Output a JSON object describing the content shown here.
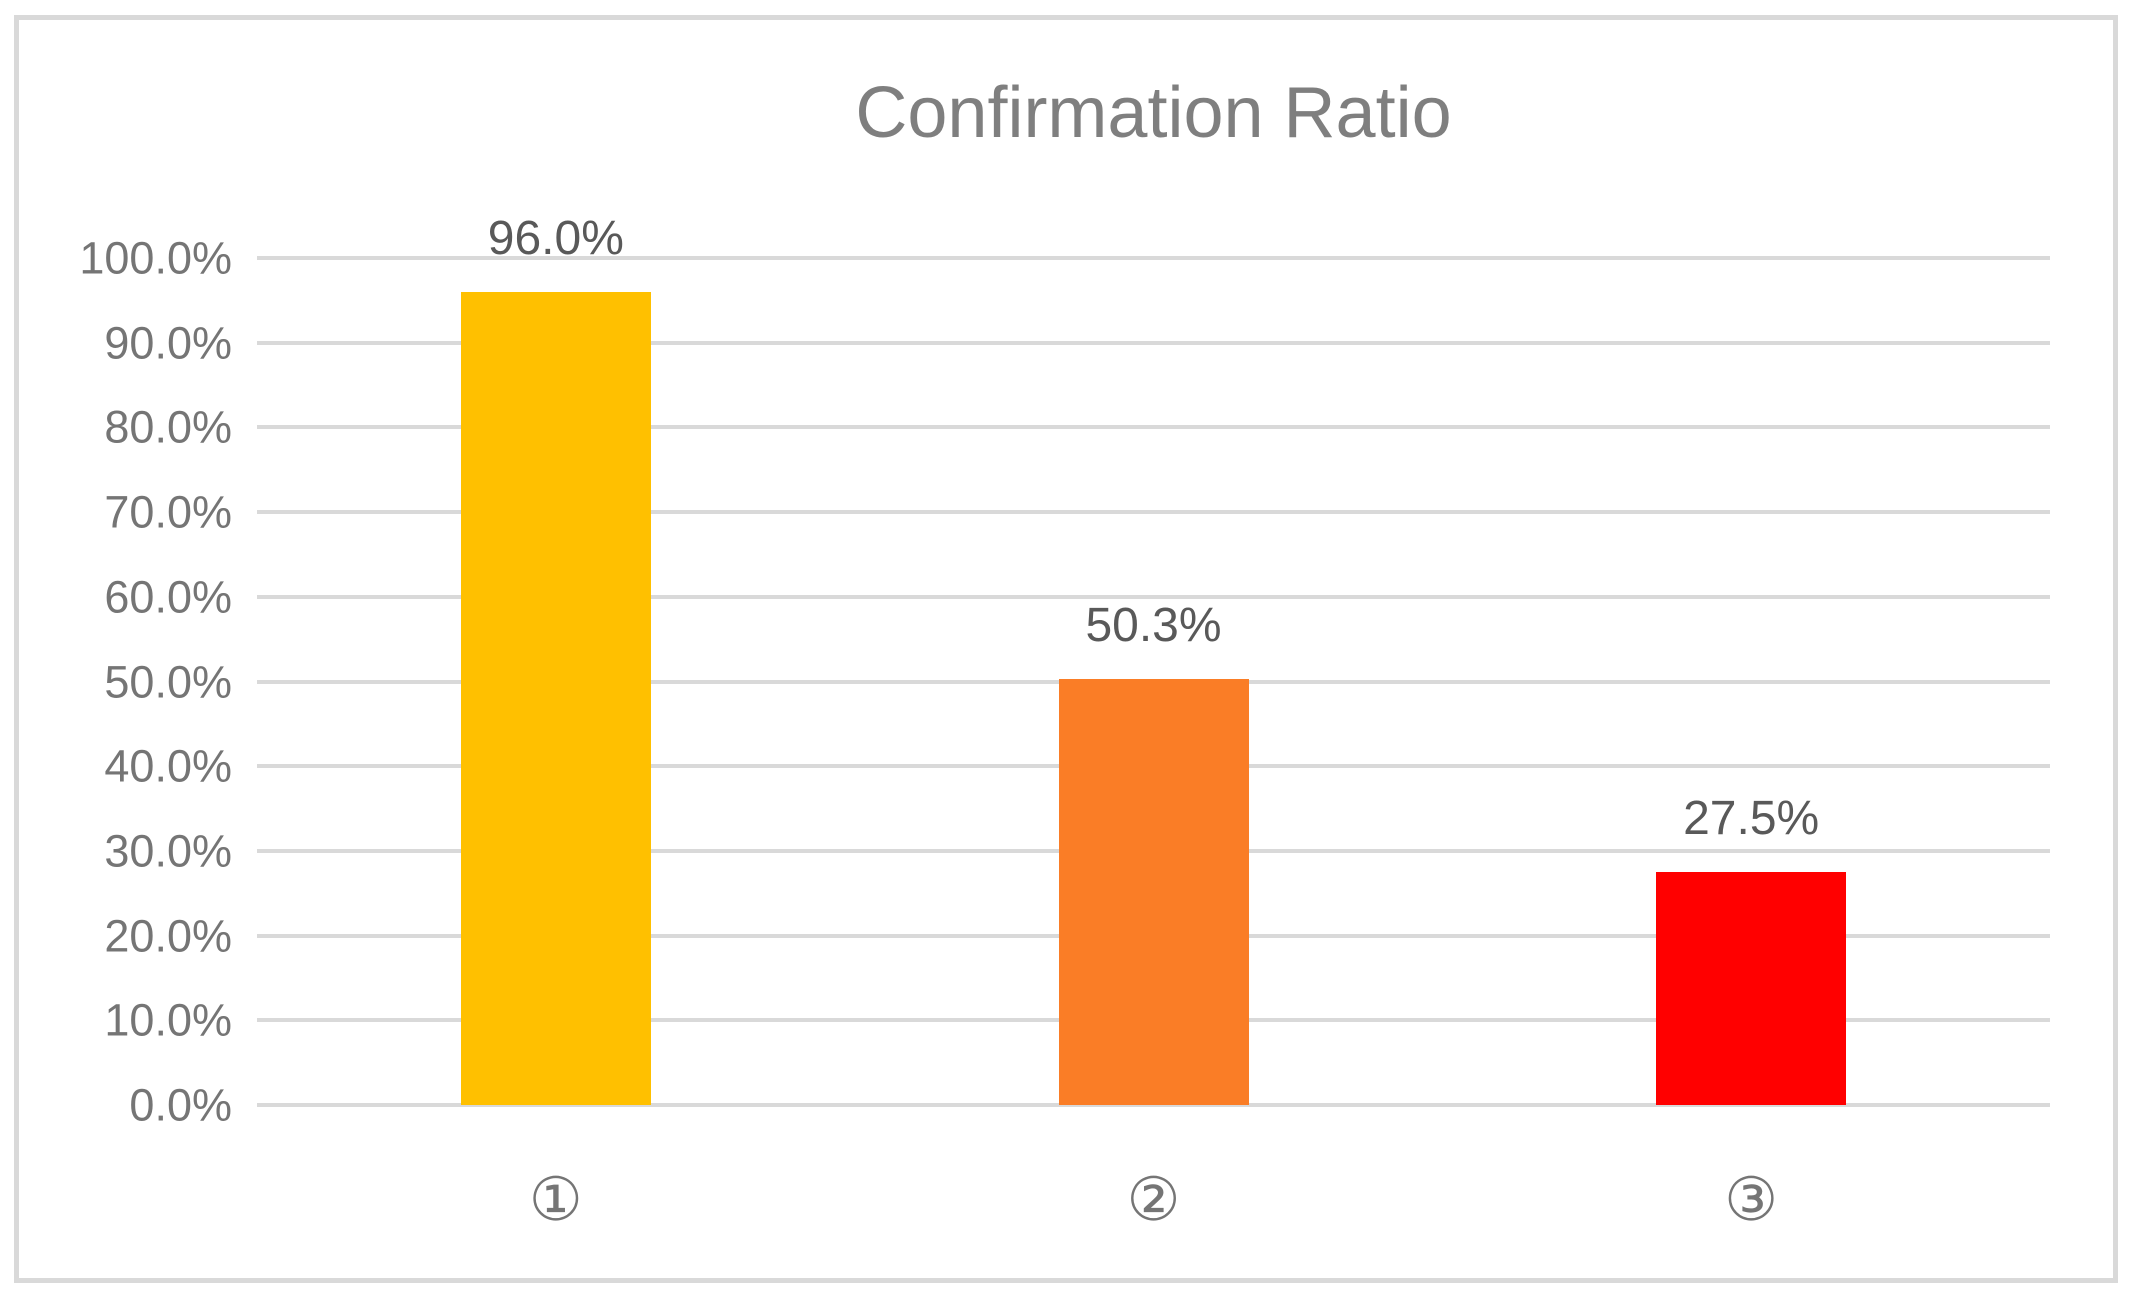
{
  "colors": {
    "frame_border": "#D9D9D9",
    "gridline": "#D9D9D9",
    "title_text": "#7F7F7F",
    "tick_text": "#757575",
    "data_label_text": "#595959",
    "category_text": "#757575",
    "background": "#FFFFFF"
  },
  "chart_data": {
    "type": "bar",
    "title": "Confirmation Ratio",
    "categories": [
      "①",
      "②",
      "③"
    ],
    "values": [
      96.0,
      50.3,
      27.5
    ],
    "data_labels": [
      "96.0%",
      "50.3%",
      "27.5%"
    ],
    "bar_colors": [
      "#FFC000",
      "#FA7D26",
      "#FF0000"
    ],
    "ylim": [
      0,
      100
    ],
    "y_tick_step": 10,
    "y_tick_labels": [
      "0.0%",
      "10.0%",
      "20.0%",
      "30.0%",
      "40.0%",
      "50.0%",
      "60.0%",
      "70.0%",
      "80.0%",
      "90.0%",
      "100.0%"
    ],
    "grid": true,
    "legend": "none",
    "xlabel": "",
    "ylabel": ""
  }
}
